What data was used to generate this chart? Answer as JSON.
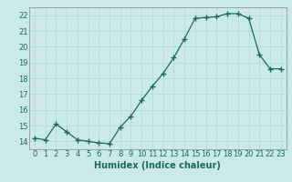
{
  "x": [
    0,
    1,
    2,
    3,
    4,
    5,
    6,
    7,
    8,
    9,
    10,
    11,
    12,
    13,
    14,
    15,
    16,
    17,
    18,
    19,
    20,
    21,
    22,
    23
  ],
  "y": [
    14.2,
    14.1,
    15.1,
    14.6,
    14.1,
    14.0,
    13.9,
    13.85,
    14.9,
    15.6,
    16.6,
    17.5,
    18.3,
    19.3,
    20.5,
    21.8,
    21.85,
    21.9,
    22.1,
    22.1,
    21.8,
    19.5,
    18.6,
    18.6
  ],
  "line_color": "#1a6b5a",
  "marker": "+",
  "marker_size": 4,
  "bg_color": "#cce9e9",
  "grid_color": "#b8d8d8",
  "xlabel": "Humidex (Indice chaleur)",
  "ylim": [
    13.5,
    22.5
  ],
  "xlim": [
    -0.5,
    23.5
  ],
  "yticks": [
    14,
    15,
    16,
    17,
    18,
    19,
    20,
    21,
    22
  ],
  "xticks": [
    0,
    1,
    2,
    3,
    4,
    5,
    6,
    7,
    8,
    9,
    10,
    11,
    12,
    13,
    14,
    15,
    16,
    17,
    18,
    19,
    20,
    21,
    22,
    23
  ],
  "label_fontsize": 7,
  "tick_fontsize": 6
}
